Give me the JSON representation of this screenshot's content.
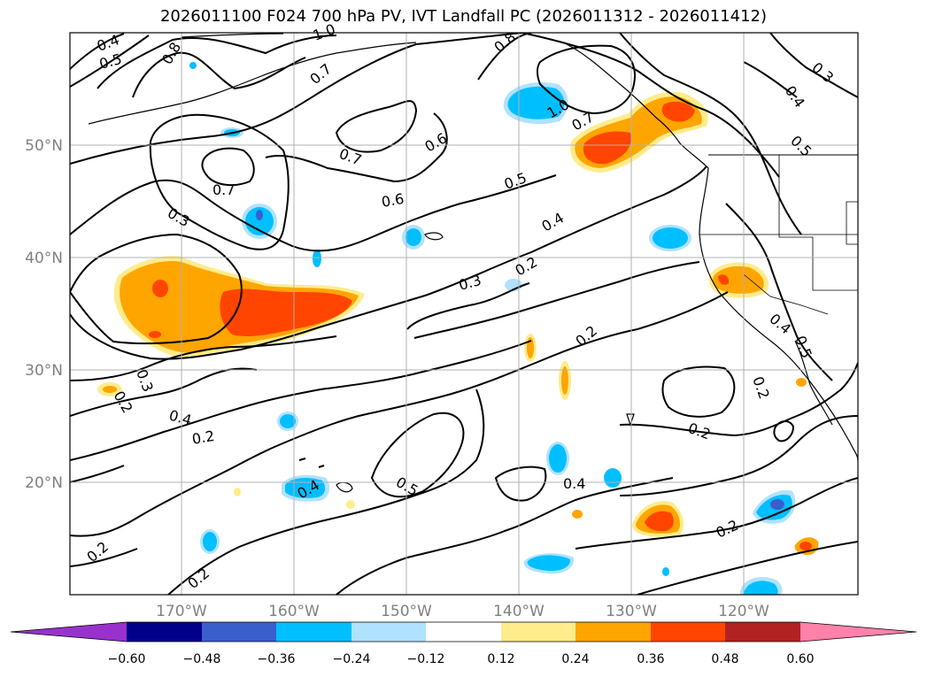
{
  "title": "2026011100 F024 700 hPa PV, IVT Landfall PC (2026011312 - 2026011412)",
  "map": {
    "lat_labels": [
      {
        "lat": 50,
        "text": "50°N"
      },
      {
        "lat": 40,
        "text": "40°N"
      },
      {
        "lat": 30,
        "text": "30°N"
      },
      {
        "lat": 20,
        "text": "20°N"
      }
    ],
    "lon_labels": [
      {
        "lon": -170,
        "text": "170°W"
      },
      {
        "lon": -160,
        "text": "160°W"
      },
      {
        "lon": -150,
        "text": "150°W"
      },
      {
        "lon": -140,
        "text": "140°W"
      },
      {
        "lon": -130,
        "text": "130°W"
      },
      {
        "lon": -120,
        "text": "120°W"
      }
    ],
    "contour_labels": [
      "0.4",
      "0.5",
      "0.8",
      "1.0",
      "0.7",
      "0.8",
      "0.3",
      "0.4",
      "0.5",
      "0.7",
      "0.6",
      "1.0",
      "0.7",
      "0.7",
      "0.5",
      "0.6",
      "0.3",
      "0.4",
      "0.3",
      "0.2",
      "0.2",
      "0.3",
      "0.4",
      "0.2",
      "0.2",
      "0.4",
      "0.5",
      "0.4",
      "0.2",
      "0.2",
      "0.2",
      "0.4",
      "0.5",
      "0.2",
      "0.2"
    ]
  },
  "colorbar": {
    "colors": [
      "#9932cc",
      "#00008b",
      "#3a5fcd",
      "#00bfff",
      "#b0e2ff",
      "#ffffff",
      "#ffec8b",
      "#ffa500",
      "#ff4500",
      "#b22222",
      "#ff82ab"
    ],
    "ticks": [
      "−0.60",
      "−0.48",
      "−0.36",
      "−0.24",
      "−0.12",
      "0.12",
      "0.24",
      "0.36",
      "0.48",
      "0.60"
    ]
  }
}
